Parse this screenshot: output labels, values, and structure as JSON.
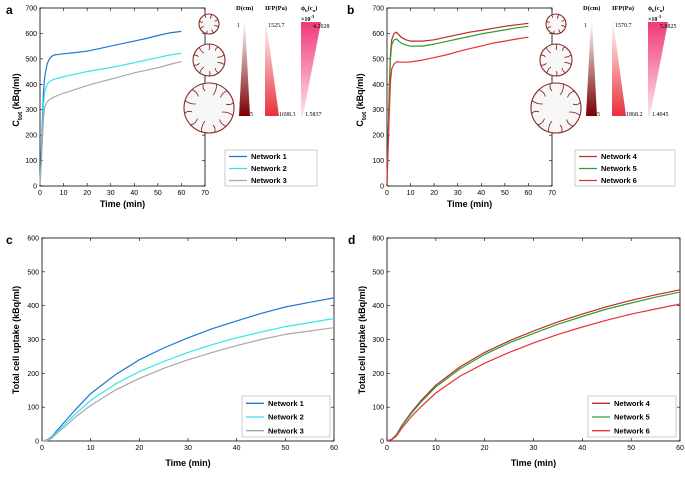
{
  "chart_data": [
    {
      "panel": "a",
      "type": "line",
      "xlabel": "Time (min)",
      "ylabel_main": "C",
      "ylabel_sub": "tot",
      "ylabel_unit": " (kBq/ml)",
      "xlim": [
        0,
        70
      ],
      "ylim": [
        0,
        700
      ],
      "xticks": [
        0,
        10,
        20,
        30,
        40,
        50,
        60,
        70
      ],
      "yticks": [
        0,
        100,
        200,
        300,
        400,
        500,
        600,
        700
      ],
      "series": [
        {
          "name": "Network 1",
          "color": "#1f77d4",
          "x": [
            0,
            0.5,
            1,
            1.5,
            2,
            3,
            4,
            5,
            6,
            8,
            10,
            15,
            20,
            25,
            30,
            35,
            40,
            45,
            50,
            55,
            60
          ],
          "y": [
            10,
            120,
            260,
            370,
            430,
            480,
            500,
            510,
            515,
            518,
            520,
            525,
            530,
            540,
            550,
            560,
            570,
            580,
            592,
            602,
            608
          ]
        },
        {
          "name": "Network 2",
          "color": "#33e5f0",
          "x": [
            0,
            0.5,
            1,
            1.5,
            2,
            3,
            4,
            5,
            6,
            8,
            10,
            15,
            20,
            25,
            30,
            35,
            40,
            45,
            50,
            55,
            60
          ],
          "y": [
            8,
            100,
            220,
            320,
            370,
            400,
            410,
            415,
            420,
            425,
            430,
            440,
            450,
            458,
            466,
            475,
            485,
            495,
            505,
            515,
            522
          ]
        },
        {
          "name": "Network 3",
          "color": "#a8a8a8",
          "x": [
            0,
            0.5,
            1,
            1.5,
            2,
            3,
            4,
            5,
            6,
            8,
            10,
            15,
            20,
            25,
            30,
            35,
            40,
            45,
            50,
            55,
            60
          ],
          "y": [
            5,
            80,
            180,
            270,
            310,
            330,
            340,
            345,
            350,
            358,
            365,
            380,
            395,
            408,
            420,
            432,
            445,
            455,
            465,
            478,
            490
          ]
        }
      ],
      "colorbars": {
        "titles": [
          "D(cm)",
          "IFP(Pa)",
          "ϕ",
          "b",
          "(c",
          "n",
          ")"
        ],
        "exponent": "×10",
        "exponent_power": "-3",
        "d_top": "1",
        "d_bottom": "5",
        "ifp_top": "1525.7",
        "ifp_bottom": "1698.3",
        "phi_top": "4.2028",
        "phi_bottom": "1.5837",
        "d_color": "#7a0000",
        "ifp_color": "#e8303a",
        "phi_color": "#f0397a"
      }
    },
    {
      "panel": "b",
      "type": "line",
      "xlabel": "Time (min)",
      "ylabel_main": "C",
      "ylabel_sub": "tot",
      "ylabel_unit": " (kBq/ml)",
      "xlim": [
        0,
        70
      ],
      "ylim": [
        0,
        700
      ],
      "xticks": [
        0,
        10,
        20,
        30,
        40,
        50,
        60,
        70
      ],
      "yticks": [
        0,
        100,
        200,
        300,
        400,
        500,
        600,
        700
      ],
      "series": [
        {
          "name": "Network 4",
          "color": "#c0282a",
          "x": [
            0,
            0.5,
            1,
            1.5,
            2,
            3,
            4,
            5,
            6,
            8,
            10,
            15,
            20,
            25,
            30,
            35,
            40,
            45,
            50,
            55,
            60
          ],
          "y": [
            10,
            200,
            400,
            520,
            575,
            600,
            605,
            595,
            585,
            575,
            570,
            570,
            575,
            585,
            595,
            605,
            612,
            620,
            628,
            634,
            640
          ]
        },
        {
          "name": "Network 5",
          "color": "#2ca02c",
          "x": [
            0,
            0.5,
            1,
            1.5,
            2,
            3,
            4,
            5,
            6,
            8,
            10,
            15,
            20,
            25,
            30,
            35,
            40,
            45,
            50,
            55,
            60
          ],
          "y": [
            10,
            190,
            380,
            500,
            555,
            575,
            578,
            570,
            562,
            555,
            550,
            550,
            558,
            568,
            578,
            588,
            598,
            606,
            614,
            622,
            628
          ]
        },
        {
          "name": "Network 6",
          "color": "#e8303a",
          "x": [
            0,
            0.5,
            1,
            1.5,
            2,
            3,
            4,
            5,
            6,
            8,
            10,
            15,
            20,
            25,
            30,
            35,
            40,
            45,
            50,
            55,
            60
          ],
          "y": [
            8,
            150,
            300,
            410,
            460,
            480,
            488,
            488,
            487,
            487,
            488,
            495,
            505,
            515,
            528,
            540,
            550,
            562,
            570,
            578,
            585
          ]
        }
      ],
      "colorbars": {
        "titles": [
          "D(cm)",
          "IFP(Pa)",
          "ϕ",
          "b",
          "(c",
          "n",
          ")"
        ],
        "exponent": "×10",
        "exponent_power": "-3",
        "d_top": "1",
        "d_bottom": "5",
        "ifp_top": "1570.7",
        "ifp_bottom": "1868.2",
        "phi_top": "5.8825",
        "phi_bottom": "1.4045",
        "d_color": "#7a0000",
        "ifp_color": "#e8303a",
        "phi_color": "#f0397a"
      }
    },
    {
      "panel": "c",
      "type": "line",
      "xlabel": "Time (min)",
      "ylabel": "Total cell uptake (kBq/ml)",
      "xlim": [
        0,
        60
      ],
      "ylim": [
        0,
        600
      ],
      "xticks": [
        0,
        10,
        20,
        30,
        40,
        50,
        60
      ],
      "yticks": [
        0,
        100,
        200,
        300,
        400,
        500,
        600
      ],
      "series": [
        {
          "name": "Network 1",
          "color": "#1f77d4",
          "x": [
            0,
            1,
            2,
            3,
            5,
            7,
            10,
            15,
            20,
            25,
            30,
            35,
            40,
            45,
            50,
            55,
            60
          ],
          "y": [
            0,
            3,
            12,
            30,
            62,
            95,
            140,
            195,
            240,
            275,
            305,
            332,
            355,
            377,
            396,
            410,
            423
          ]
        },
        {
          "name": "Network 2",
          "color": "#33e5f0",
          "x": [
            0,
            1,
            2,
            3,
            5,
            7,
            10,
            15,
            20,
            25,
            30,
            35,
            40,
            45,
            50,
            55,
            60
          ],
          "y": [
            0,
            2,
            10,
            26,
            53,
            82,
            120,
            168,
            205,
            235,
            262,
            285,
            305,
            322,
            338,
            350,
            362
          ]
        },
        {
          "name": "Network 3",
          "color": "#a8a8a8",
          "x": [
            0,
            1,
            2,
            3,
            5,
            7,
            10,
            15,
            20,
            25,
            30,
            35,
            40,
            45,
            50,
            55,
            60
          ],
          "y": [
            0,
            1,
            8,
            22,
            46,
            72,
            105,
            150,
            185,
            215,
            240,
            262,
            282,
            300,
            315,
            325,
            335
          ]
        }
      ]
    },
    {
      "panel": "d",
      "type": "line",
      "xlabel": "Time (min)",
      "ylabel": "Total cell uptake (kBq/ml)",
      "xlim": [
        0,
        60
      ],
      "ylim": [
        0,
        600
      ],
      "xticks": [
        0,
        10,
        20,
        30,
        40,
        50,
        60
      ],
      "yticks": [
        0,
        100,
        200,
        300,
        400,
        500,
        600
      ],
      "series": [
        {
          "name": "Network 4",
          "color": "#c0282a",
          "x": [
            0,
            1,
            2,
            3,
            5,
            7,
            10,
            15,
            20,
            25,
            30,
            35,
            40,
            45,
            50,
            55,
            60
          ],
          "y": [
            0,
            5,
            20,
            45,
            85,
            120,
            165,
            220,
            262,
            296,
            325,
            352,
            375,
            397,
            416,
            432,
            447
          ]
        },
        {
          "name": "Network 5",
          "color": "#2ca02c",
          "x": [
            0,
            1,
            2,
            3,
            5,
            7,
            10,
            15,
            20,
            25,
            30,
            35,
            40,
            45,
            50,
            55,
            60
          ],
          "y": [
            0,
            5,
            19,
            43,
            82,
            116,
            160,
            214,
            256,
            290,
            318,
            345,
            368,
            390,
            408,
            425,
            440
          ]
        },
        {
          "name": "Network 6",
          "color": "#e8303a",
          "x": [
            0,
            1,
            2,
            3,
            5,
            7,
            10,
            15,
            20,
            25,
            30,
            35,
            40,
            45,
            50,
            55,
            60
          ],
          "y": [
            0,
            4,
            16,
            37,
            72,
            102,
            142,
            192,
            230,
            262,
            290,
            315,
            337,
            357,
            375,
            390,
            405
          ]
        }
      ]
    }
  ]
}
